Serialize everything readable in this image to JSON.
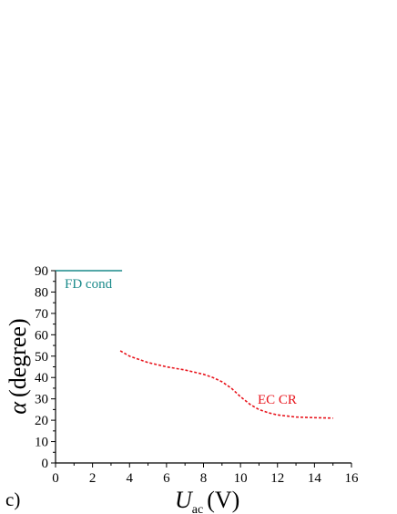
{
  "panel_label": "c)",
  "chart_data": {
    "type": "line",
    "xlabel": {
      "main": "U",
      "sub": "ac",
      "unit": "(V)"
    },
    "ylabel": {
      "symbol": "α",
      "unit": "(degree)"
    },
    "xlim": [
      0,
      16
    ],
    "ylim": [
      0,
      90
    ],
    "x_ticks": [
      "0",
      "2",
      "4",
      "6",
      "8",
      "10",
      "12",
      "14",
      "16"
    ],
    "y_ticks": [
      "0",
      "10",
      "20",
      "30",
      "40",
      "50",
      "60",
      "70",
      "80",
      "90"
    ],
    "series": [
      {
        "name": "FD cond",
        "color": "#1a8a8a",
        "style": "solid",
        "x": [
          0,
          3.6
        ],
        "y": [
          90,
          90
        ]
      },
      {
        "name": "EC CR",
        "color": "#e8141c",
        "style": "dashed",
        "x": [
          3.5,
          4.0,
          5.0,
          6.0,
          7.0,
          8.0,
          8.5,
          9.0,
          9.5,
          10.0,
          10.5,
          11.0,
          11.5,
          12.0,
          13.0,
          14.0,
          15.0
        ],
        "y": [
          52.5,
          50.0,
          47.0,
          45.0,
          43.5,
          41.5,
          40.0,
          38.0,
          35.0,
          31.0,
          27.5,
          25.0,
          23.5,
          22.5,
          21.5,
          21.2,
          21.0
        ]
      }
    ],
    "grid": false,
    "legend": "inline labels"
  }
}
